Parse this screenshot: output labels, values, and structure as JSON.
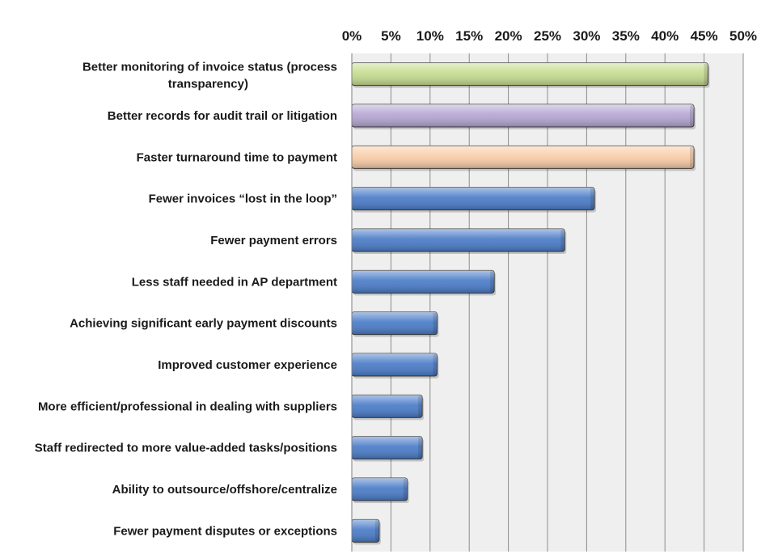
{
  "chart_data": {
    "type": "bar",
    "orientation": "horizontal",
    "categories": [
      "Better monitoring of invoice status (process transparency)",
      "Better records for audit trail or litigation",
      "Faster turnaround time to payment",
      "Fewer invoices “lost in the loop”",
      "Fewer payment errors",
      "Less staff needed in AP department",
      "Achieving significant early payment discounts",
      "Improved customer experience",
      "More efficient/professional in dealing with suppliers",
      "Staff redirected to more value-added tasks/positions",
      "Ability to outsource/offshore/centralize",
      "Fewer payment disputes or exceptions"
    ],
    "values": [
      45.5,
      43.7,
      43.7,
      31,
      27.2,
      18.2,
      10.9,
      10.9,
      9,
      9,
      7.1,
      3.5
    ],
    "bar_colors": [
      "#c6dc8f",
      "#b5a6d3",
      "#f9cda8",
      "#4a7cc8",
      "#4a7cc8",
      "#4a7cc8",
      "#4a7cc8",
      "#4a7cc8",
      "#4a7cc8",
      "#4a7cc8",
      "#4a7cc8",
      "#4a7cc8"
    ],
    "x_ticks": [
      "0%",
      "5%",
      "10%",
      "15%",
      "20%",
      "25%",
      "30%",
      "35%",
      "40%",
      "45%",
      "50%"
    ],
    "xlim": [
      0,
      50
    ],
    "x_axis_position": "top",
    "grid": true,
    "plot_background": "#efefef",
    "title": "",
    "xlabel": "",
    "ylabel": ""
  }
}
